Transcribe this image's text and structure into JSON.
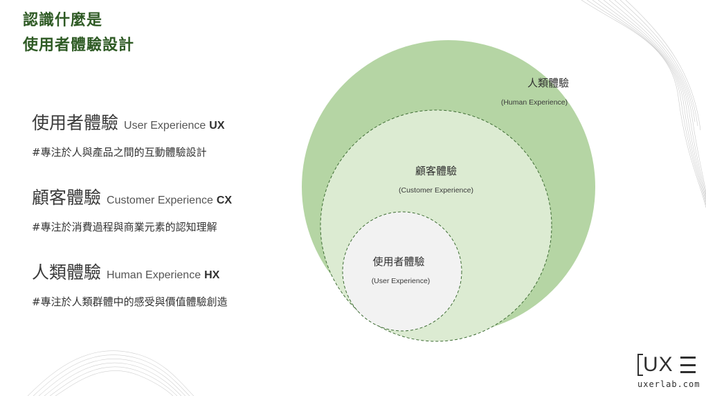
{
  "title": {
    "line1": "認識什麼是",
    "line2": "使用者體驗設計"
  },
  "definitions": [
    {
      "zh": "使用者體驗",
      "en": "User Experience",
      "abbr": "UX",
      "desc": "#專注於人與產品之間的互動體驗設計"
    },
    {
      "zh": "顧客體驗",
      "en": "Customer Experience",
      "abbr": "CX",
      "desc": "#專注於消費過程與商業元素的認知理解"
    },
    {
      "zh": "人類體驗",
      "en": "Human Experience",
      "abbr": "HX",
      "desc": "#專注於人類群體中的感受與價值體驗創造"
    }
  ],
  "diagram": {
    "human": {
      "zh": "人類體驗",
      "en": "(Human Experience)"
    },
    "customer": {
      "zh": "顧客體驗",
      "en": "(Customer Experience)"
    },
    "user": {
      "zh": "使用者體驗",
      "en": "(User Experience)"
    }
  },
  "colors": {
    "title": "#2e5a24",
    "outer_circle": "#b5d5a4",
    "middle_circle": "#dcebd2",
    "inner_circle": "#f2f2f2",
    "dash": "#3d6b33"
  },
  "logo": {
    "mark": "UX",
    "url": "uxerlab.com"
  }
}
